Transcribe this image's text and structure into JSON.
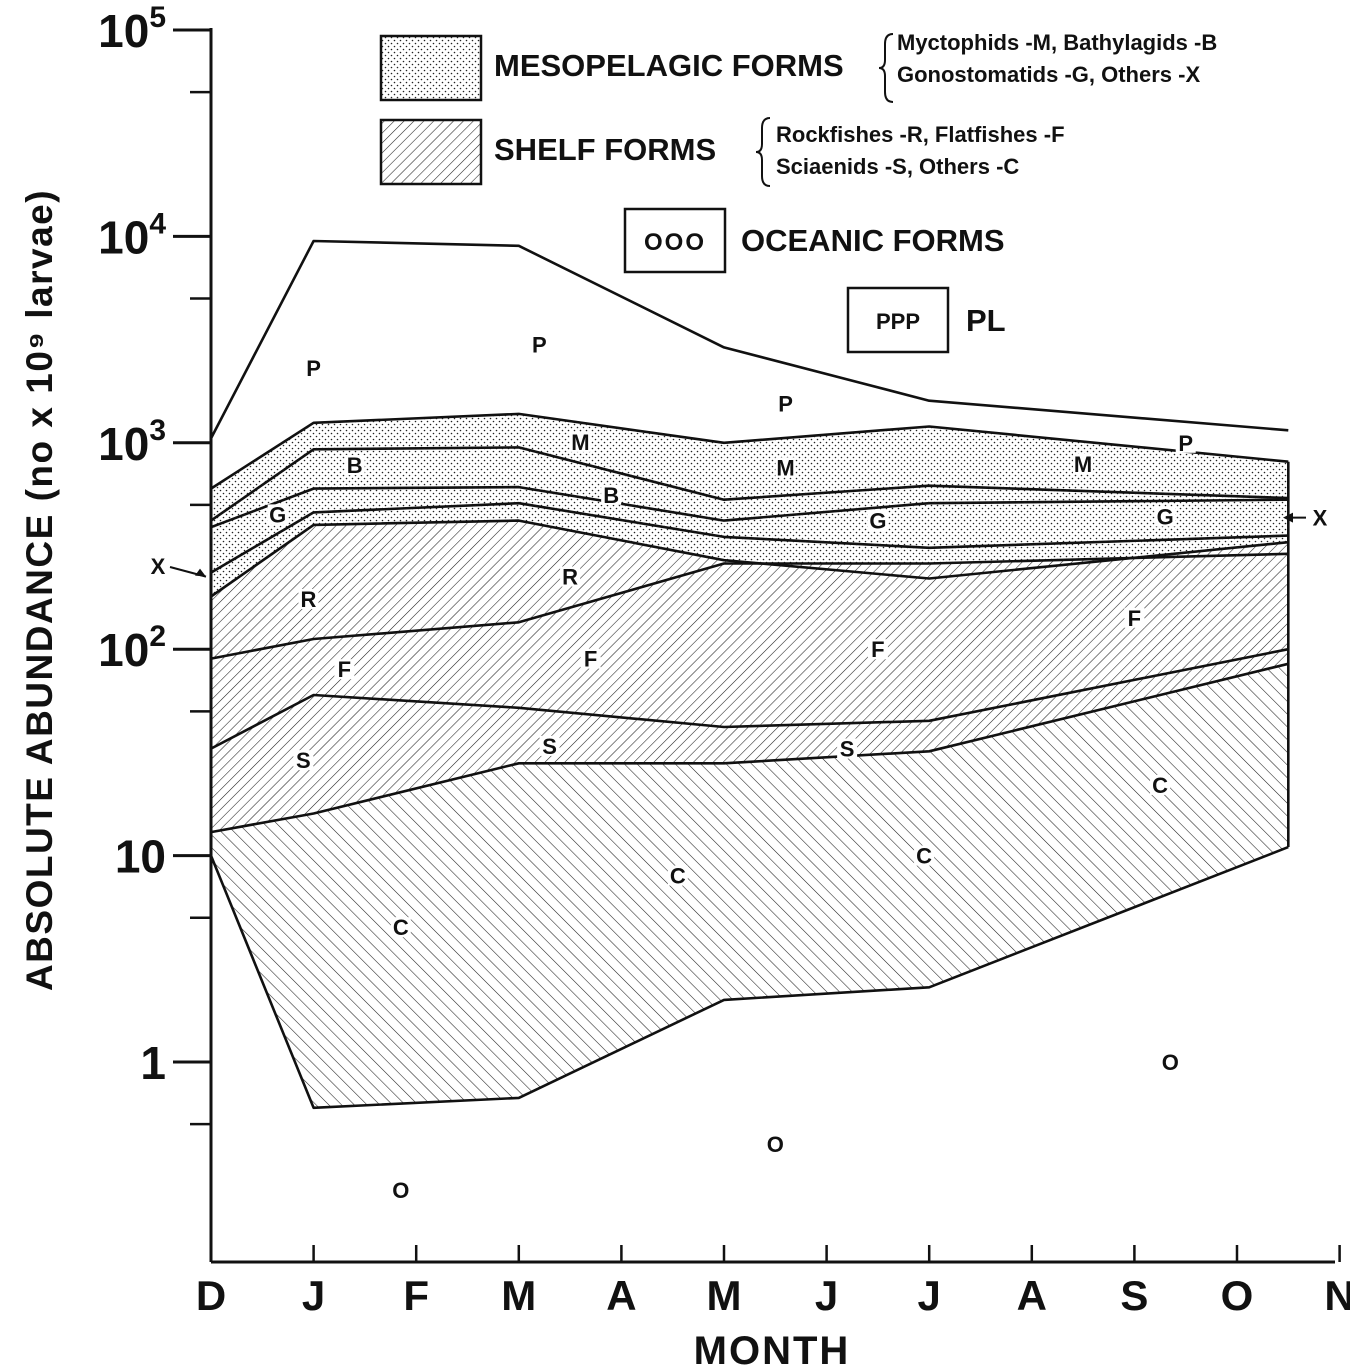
{
  "chart_data": {
    "type": "area",
    "title": "",
    "xlabel": "MONTH",
    "ylabel": "ABSOLUTE ABUNDANCE (no x 10⁹ larvae)",
    "yscale": "log",
    "ylim": [
      0.1,
      100000
    ],
    "grid": false,
    "legend_position": "top",
    "x_ticks": [
      "D",
      "J",
      "F",
      "M",
      "A",
      "M",
      "J",
      "J",
      "A",
      "S",
      "O",
      "N"
    ],
    "y_ticks": [
      {
        "value": 100000,
        "base": "10",
        "exp": "5"
      },
      {
        "value": 10000,
        "base": "10",
        "exp": "4"
      },
      {
        "value": 1000,
        "base": "10",
        "exp": "3"
      },
      {
        "value": 100,
        "base": "10",
        "exp": "2"
      },
      {
        "value": 10,
        "base": "10",
        "exp": ""
      },
      {
        "value": 1,
        "base": "1",
        "exp": ""
      }
    ],
    "x": [
      "D",
      "J",
      "M",
      "M",
      "J",
      "O"
    ],
    "x_month_index": [
      0,
      1,
      3,
      5,
      7,
      10.5
    ],
    "boundaries": [
      {
        "name": "PL-top",
        "values": [
          1050,
          9500,
          9000,
          2900,
          1600,
          1150
        ]
      },
      {
        "name": "M-top",
        "values": [
          600,
          1250,
          1380,
          1000,
          1200,
          810
        ]
      },
      {
        "name": "B-top",
        "values": [
          420,
          930,
          950,
          530,
          620,
          540
        ]
      },
      {
        "name": "G-top",
        "values": [
          390,
          600,
          610,
          420,
          510,
          530
        ]
      },
      {
        "name": "X-top",
        "values": [
          235,
          460,
          510,
          350,
          310,
          355
        ]
      },
      {
        "name": "R-top",
        "values": [
          180,
          400,
          420,
          270,
          220,
          330
        ]
      },
      {
        "name": "F-top",
        "values": [
          90,
          112,
          135,
          260,
          260,
          290
        ]
      },
      {
        "name": "S-top",
        "values": [
          33,
          60,
          52,
          42,
          45,
          100
        ]
      },
      {
        "name": "C-top",
        "values": [
          13,
          16,
          28,
          28,
          32,
          85
        ]
      },
      {
        "name": "C-bottom",
        "values": [
          10,
          0.6,
          0.67,
          2.0,
          2.3,
          11
        ]
      }
    ],
    "legend": [
      {
        "label": "MESOPELAGIC FORMS",
        "pattern": "dots",
        "members": [
          "Myctophids -M, Bathylagids -B",
          "Gonostomatids -G, Others -X"
        ]
      },
      {
        "label": "SHELF FORMS",
        "pattern": "hatch",
        "members": [
          "Rockfishes -R, Flatfishes -F",
          "Sciaenids -S, Others -C"
        ]
      },
      {
        "label": "OCEANIC FORMS",
        "pattern": "text",
        "symbol": "OOO",
        "members": []
      },
      {
        "label": "PL",
        "pattern": "text",
        "symbol": "PPP",
        "members": []
      }
    ],
    "annotations": [
      {
        "text": "P",
        "month": 1.0,
        "value": 2300
      },
      {
        "text": "P",
        "month": 3.2,
        "value": 3000
      },
      {
        "text": "P",
        "month": 5.6,
        "value": 1550
      },
      {
        "text": "P",
        "month": 9.5,
        "value": 1000
      },
      {
        "text": "M",
        "month": 3.6,
        "value": 1010
      },
      {
        "text": "M",
        "month": 5.6,
        "value": 760
      },
      {
        "text": "M",
        "month": 8.5,
        "value": 790
      },
      {
        "text": "B",
        "month": 1.4,
        "value": 780
      },
      {
        "text": "B",
        "month": 3.9,
        "value": 560
      },
      {
        "text": "G",
        "month": 0.65,
        "value": 450
      },
      {
        "text": "G",
        "month": 6.5,
        "value": 420
      },
      {
        "text": "G",
        "month": 9.3,
        "value": 440
      },
      {
        "text": "R",
        "month": 0.95,
        "value": 175
      },
      {
        "text": "R",
        "month": 3.5,
        "value": 225
      },
      {
        "text": "F",
        "month": 1.3,
        "value": 80
      },
      {
        "text": "F",
        "month": 3.7,
        "value": 90
      },
      {
        "text": "F",
        "month": 6.5,
        "value": 100
      },
      {
        "text": "F",
        "month": 9.0,
        "value": 142
      },
      {
        "text": "S",
        "month": 0.9,
        "value": 29
      },
      {
        "text": "S",
        "month": 3.3,
        "value": 34
      },
      {
        "text": "S",
        "month": 6.2,
        "value": 33
      },
      {
        "text": "C",
        "month": 1.85,
        "value": 4.5
      },
      {
        "text": "C",
        "month": 4.55,
        "value": 8.0
      },
      {
        "text": "C",
        "month": 6.95,
        "value": 10.0
      },
      {
        "text": "C",
        "month": 9.25,
        "value": 22
      },
      {
        "text": "O",
        "month": 1.85,
        "value": 0.24
      },
      {
        "text": "O",
        "month": 5.5,
        "value": 0.4
      },
      {
        "text": "O",
        "month": 9.35,
        "value": 1.0
      }
    ],
    "x_markers": [
      {
        "text": "X",
        "side": "left"
      },
      {
        "text": "X",
        "side": "right"
      }
    ]
  }
}
